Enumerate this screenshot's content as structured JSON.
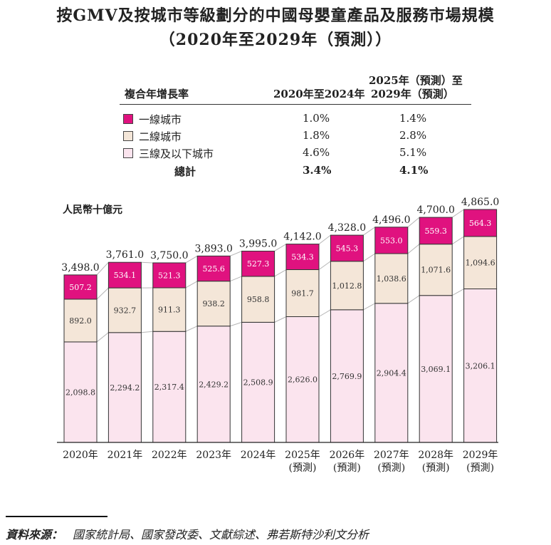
{
  "title_line1": "按GMV及按城市等級劃分的中國母嬰童產品及服務市場規模",
  "title_line2": "（2020年至2029年（預測））",
  "cagr_table": {
    "header_label": "複合年增長率",
    "col1_header": "2020年至2024年",
    "col2_header_line1": "2025年（預測）至",
    "col2_header_line2": "2029年（預測）",
    "rows": [
      {
        "name": "一線城市",
        "color": "#e0127f",
        "c1": "1.0%",
        "c2": "1.4%"
      },
      {
        "name": "二線城市",
        "color": "#f4e6d8",
        "c1": "1.8%",
        "c2": "2.8%"
      },
      {
        "name": "三線及以下城市",
        "color": "#fbe4ee",
        "c1": "4.6%",
        "c2": "5.1%"
      }
    ],
    "total": {
      "name": "總計",
      "c1": "3.4%",
      "c2": "4.1%"
    }
  },
  "chart_data": {
    "type": "bar",
    "stacked": true,
    "ylabel": "人民幣十億元",
    "categories": [
      {
        "line1": "2020年",
        "line2": ""
      },
      {
        "line1": "2021年",
        "line2": ""
      },
      {
        "line1": "2022年",
        "line2": ""
      },
      {
        "line1": "2023年",
        "line2": ""
      },
      {
        "line1": "2024年",
        "line2": ""
      },
      {
        "line1": "2025年",
        "line2": "(預測)"
      },
      {
        "line1": "2026年",
        "line2": "(預測)"
      },
      {
        "line1": "2027年",
        "line2": "(預測)"
      },
      {
        "line1": "2028年",
        "line2": "(預測)"
      },
      {
        "line1": "2029年",
        "line2": "(預測)"
      }
    ],
    "series": [
      {
        "name": "三線及以下城市",
        "color": "#fbe4ee",
        "label_color": "#333333",
        "values": [
          2098.8,
          2294.2,
          2317.4,
          2429.2,
          2508.9,
          2626.0,
          2769.9,
          2904.4,
          3069.1,
          3206.1
        ],
        "labels": [
          "2,098.8",
          "2,294.2",
          "2,317.4",
          "2,429.2",
          "2,508.9",
          "2,626.0",
          "2,769.9",
          "2,904.4",
          "3,069.1",
          "3,206.1"
        ]
      },
      {
        "name": "二線城市",
        "color": "#f4e6d8",
        "label_color": "#333333",
        "values": [
          892.0,
          932.7,
          911.3,
          938.2,
          958.8,
          981.7,
          1012.8,
          1038.6,
          1071.6,
          1094.6
        ],
        "labels": [
          "892.0",
          "932.7",
          "911.3",
          "938.2",
          "958.8",
          "981.7",
          "1,012.8",
          "1,038.6",
          "1,071.6",
          "1,094.6"
        ]
      },
      {
        "name": "一線城市",
        "color": "#e0127f",
        "label_color": "#ffffff",
        "values": [
          507.2,
          534.1,
          521.3,
          525.6,
          527.3,
          534.3,
          545.3,
          553.0,
          559.3,
          564.3
        ],
        "labels": [
          "507.2",
          "534.1",
          "521.3",
          "525.6",
          "527.3",
          "534.3",
          "545.3",
          "553.0",
          "559.3",
          "564.3"
        ]
      }
    ],
    "totals": [
      3498.0,
      3761.0,
      3750.0,
      3893.0,
      3995.0,
      4142.0,
      4328.0,
      4496.0,
      4700.0,
      4865.0
    ],
    "total_labels": [
      "3,498.0",
      "3,761.0",
      "3,750.0",
      "3,893.0",
      "3,995.0",
      "4,142.0",
      "4,328.0",
      "4,496.0",
      "4,700.0",
      "4,865.0"
    ],
    "ylim": [
      0,
      4865
    ]
  },
  "footnote": {
    "label": "資料來源：",
    "text": "國家統計局、國家發改委、文獻綜述、弗若斯特沙利文分析"
  }
}
